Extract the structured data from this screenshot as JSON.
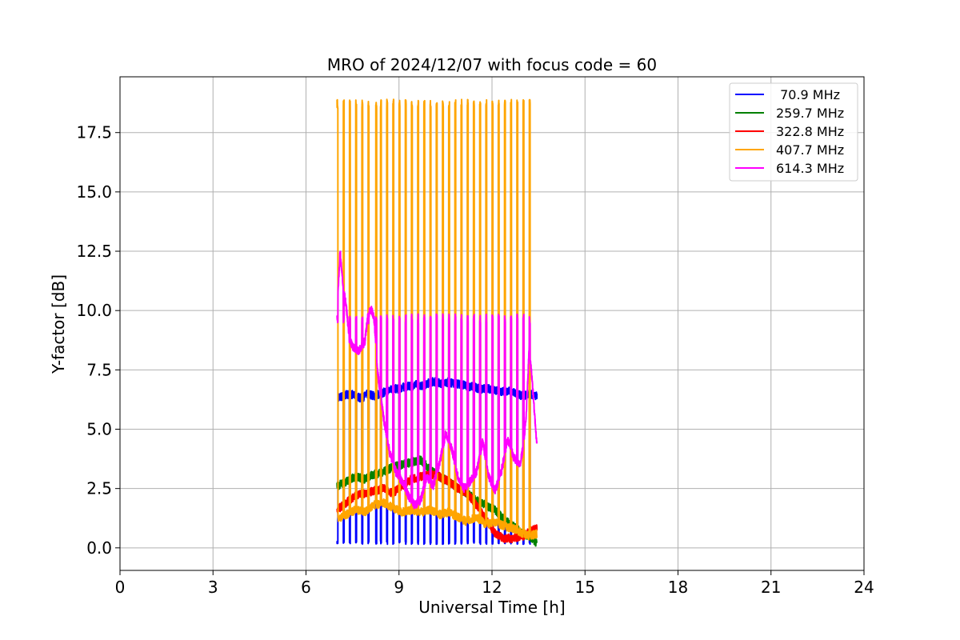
{
  "chart_data": {
    "type": "line",
    "title": "MRO of 2024/12/07 with focus code = 60",
    "xlabel": "Universal Time [h]",
    "ylabel": "Y-factor [dB]",
    "xlim": [
      0,
      24
    ],
    "ylim": [
      -0.95,
      19.85
    ],
    "xticks": [
      0,
      3,
      6,
      9,
      12,
      15,
      18,
      21,
      24
    ],
    "yticks": [
      0.0,
      2.5,
      5.0,
      7.5,
      10.0,
      12.5,
      15.0,
      17.5
    ],
    "ytick_labels": [
      "0.0",
      "2.5",
      "5.0",
      "7.5",
      "10.0",
      "12.5",
      "15.0",
      "17.5"
    ],
    "grid": true,
    "legend_position": "top-right",
    "series": [
      {
        "name": " 70.9 MHz",
        "color": "#0000ff",
        "x": [
          7.0,
          7.2,
          7.4,
          7.6,
          7.8,
          8.0,
          8.2,
          8.4,
          8.6,
          8.8,
          9.0,
          9.2,
          9.4,
          9.6,
          9.8,
          10.0,
          10.2,
          10.4,
          10.6,
          10.8,
          11.0,
          11.2,
          11.4,
          11.6,
          11.8,
          12.0,
          12.2,
          12.4,
          12.6,
          12.8,
          13.0,
          13.2,
          13.45
        ],
        "y": [
          6.3,
          6.4,
          6.5,
          6.4,
          6.3,
          6.5,
          6.4,
          6.5,
          6.6,
          6.7,
          6.7,
          6.8,
          6.8,
          6.9,
          6.8,
          7.0,
          7.0,
          6.9,
          7.0,
          6.9,
          6.9,
          6.8,
          6.8,
          6.7,
          6.7,
          6.7,
          6.6,
          6.6,
          6.6,
          6.5,
          6.4,
          6.5,
          6.4
        ],
        "spike_low": 0.15
      },
      {
        "name": "259.7 MHz",
        "color": "#008000",
        "x": [
          7.0,
          7.3,
          7.6,
          7.9,
          8.2,
          8.5,
          8.8,
          9.1,
          9.4,
          9.7,
          10.0,
          10.3,
          10.6,
          10.9,
          11.2,
          11.5,
          11.8,
          12.1,
          12.4,
          12.7,
          13.0,
          13.2,
          13.45
        ],
        "y": [
          2.6,
          2.8,
          3.0,
          2.9,
          3.1,
          3.2,
          3.4,
          3.5,
          3.6,
          3.7,
          3.3,
          3.0,
          2.8,
          2.5,
          2.3,
          2.0,
          1.8,
          1.6,
          1.2,
          0.9,
          0.6,
          0.5,
          0.2
        ]
      },
      {
        "name": "322.8 MHz",
        "color": "#ff0000",
        "x": [
          7.0,
          7.3,
          7.6,
          7.9,
          8.2,
          8.5,
          8.8,
          9.1,
          9.4,
          9.7,
          10.0,
          10.3,
          10.6,
          10.9,
          11.2,
          11.5,
          11.8,
          12.1,
          12.4,
          12.7,
          13.0,
          13.2,
          13.45
        ],
        "y": [
          1.6,
          1.9,
          2.2,
          2.3,
          2.4,
          2.5,
          2.3,
          2.6,
          2.9,
          3.0,
          3.1,
          3.0,
          2.8,
          2.5,
          2.3,
          1.8,
          1.2,
          0.6,
          0.4,
          0.4,
          0.5,
          0.7,
          0.8
        ]
      },
      {
        "name": "407.7 MHz",
        "color": "#ffa500",
        "x": [
          7.0,
          7.3,
          7.6,
          7.9,
          8.2,
          8.5,
          8.8,
          9.1,
          9.4,
          9.7,
          10.0,
          10.3,
          10.6,
          10.9,
          11.2,
          11.5,
          11.8,
          12.1,
          12.4,
          12.7,
          13.0,
          13.2,
          13.45
        ],
        "y": [
          1.2,
          1.4,
          1.6,
          1.5,
          1.8,
          1.9,
          1.7,
          1.5,
          1.6,
          1.5,
          1.6,
          1.4,
          1.5,
          1.3,
          1.1,
          1.3,
          1.0,
          1.1,
          0.9,
          0.8,
          0.6,
          0.5,
          0.6
        ],
        "spike_high": 18.9
      },
      {
        "name": "614.3 MHz",
        "color": "#ff00ff",
        "x": [
          7.0,
          7.1,
          7.2,
          7.3,
          7.4,
          7.5,
          7.7,
          7.9,
          8.0,
          8.1,
          8.2,
          8.3,
          8.5,
          8.7,
          8.9,
          9.1,
          9.3,
          9.5,
          9.7,
          9.9,
          10.1,
          10.3,
          10.5,
          10.7,
          10.9,
          11.1,
          11.3,
          11.5,
          11.7,
          11.9,
          12.1,
          12.3,
          12.5,
          12.7,
          12.9,
          13.0,
          13.1,
          13.2,
          13.3,
          13.45
        ],
        "y": [
          9.8,
          12.5,
          11.0,
          10.2,
          8.8,
          8.5,
          8.3,
          8.7,
          9.8,
          10.1,
          9.6,
          7.5,
          5.5,
          4.0,
          3.2,
          2.8,
          2.2,
          1.8,
          2.0,
          3.0,
          2.6,
          3.5,
          4.8,
          4.2,
          3.0,
          2.5,
          2.8,
          3.2,
          4.5,
          3.0,
          2.4,
          3.2,
          4.6,
          3.8,
          3.5,
          4.2,
          5.5,
          8.4,
          7.0,
          4.2
        ],
        "spike_high": 9.85
      }
    ],
    "spike_times": [
      7.0,
      7.2,
      7.4,
      7.6,
      7.8,
      8.0,
      8.25,
      8.4,
      8.6,
      8.8,
      9.0,
      9.2,
      9.4,
      9.6,
      9.8,
      10.0,
      10.2,
      10.4,
      10.6,
      10.8,
      11.0,
      11.2,
      11.4,
      11.6,
      11.8,
      12.0,
      12.2,
      12.4,
      12.6,
      12.8,
      13.0,
      13.2
    ]
  }
}
